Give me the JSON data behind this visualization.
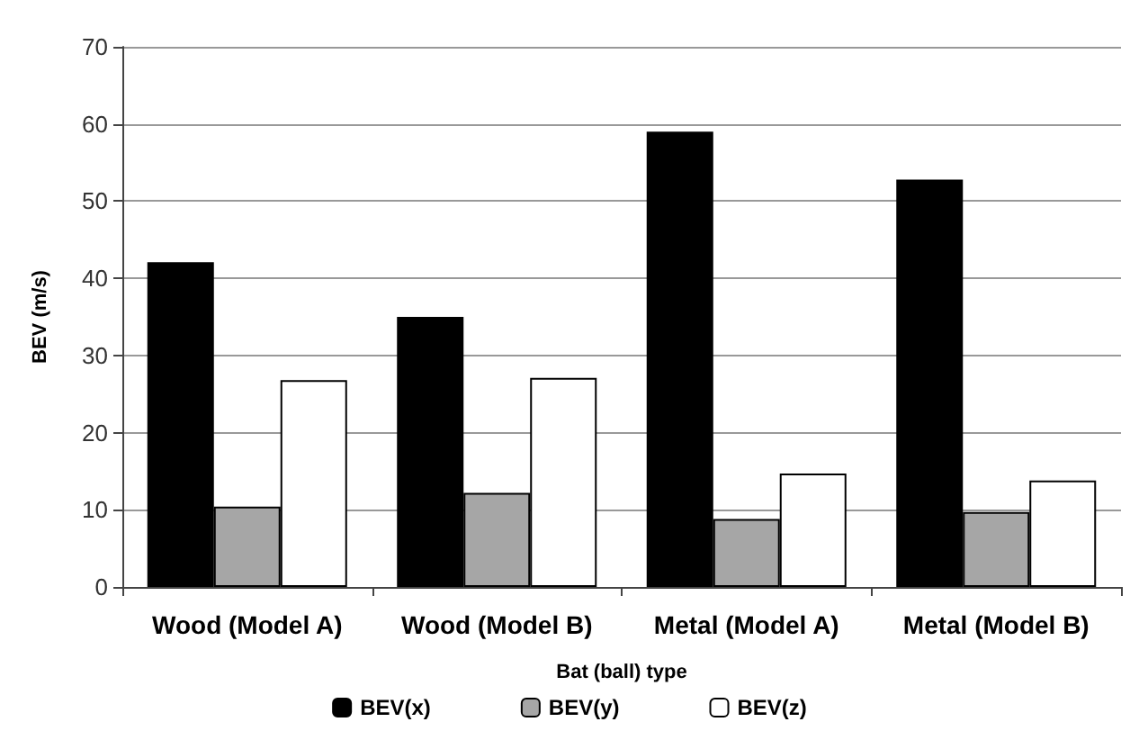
{
  "chart_data": {
    "type": "bar",
    "xlabel": "Bat (ball) type",
    "ylabel": "BEV (m/s)",
    "categories": [
      "Wood (Model A)",
      "Wood (Model B)",
      "Metal (Model A)",
      "Metal (Model B)"
    ],
    "series": [
      {
        "name": "BEV(x)",
        "color": "#000000",
        "values": [
          42.1,
          35.0,
          59.0,
          52.8
        ]
      },
      {
        "name": "BEV(y)",
        "color": "#a6a6a6",
        "values": [
          10.4,
          12.2,
          8.8,
          9.7
        ]
      },
      {
        "name": "BEV(z)",
        "color": "#ffffff",
        "values": [
          26.8,
          27.1,
          14.7,
          13.8
        ]
      }
    ],
    "ylim": [
      0,
      70
    ],
    "yticks": [
      0,
      10,
      20,
      30,
      40,
      50,
      60,
      70
    ],
    "grid": "y",
    "legend": "bottom"
  }
}
